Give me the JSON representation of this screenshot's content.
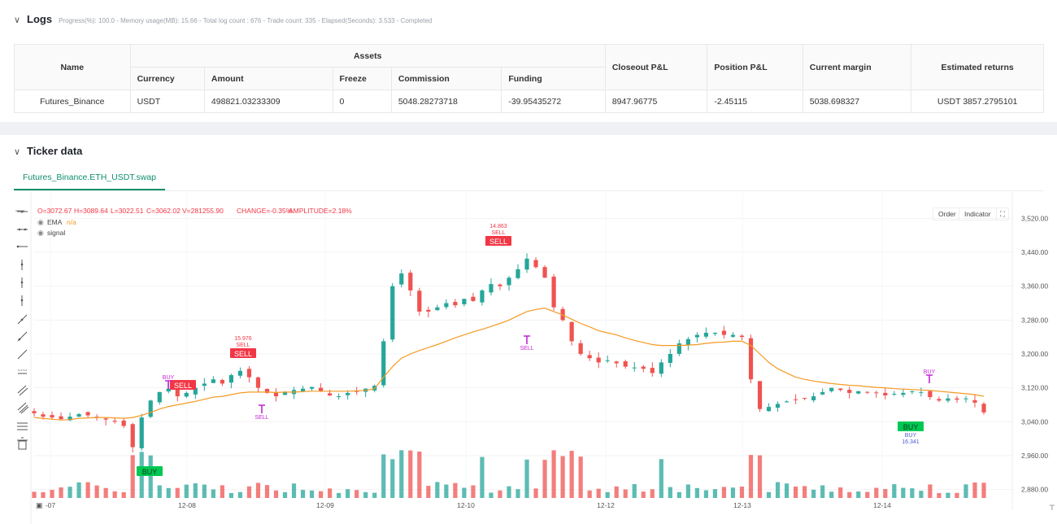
{
  "logs": {
    "title": "Logs",
    "status": "Progress(%): 100.0  -  Memory usage(MB): 15.66  -  Total log count : 676  -  Trade count:  335  -  Elapsed(Seconds): 3.533  -  Completed",
    "table": {
      "headers": {
        "name": "Name",
        "assets": "Assets",
        "currency": "Currency",
        "amount": "Amount",
        "freeze": "Freeze",
        "commission": "Commission",
        "funding": "Funding",
        "closeout": "Closeout P&L",
        "position": "Position P&L",
        "margin": "Current margin",
        "returns": "Estimated returns"
      },
      "row": {
        "name": "Futures_Binance",
        "currency": "USDT",
        "amount": "498821.03233309",
        "freeze": "0",
        "commission": "5048.28273718",
        "funding": "-39.95435272",
        "closeout": "8947.96775",
        "position": "-2.45115",
        "margin": "5038.698327",
        "returns": "USDT 3857.2795101"
      }
    }
  },
  "ticker": {
    "title": "Ticker data",
    "tab": "Futures_Binance.ETH_USDT.swap",
    "buttons": {
      "order": "Order",
      "indicator": "Indicator"
    },
    "ohlc": {
      "o": "O=3072.67",
      "h": "H=3089.64",
      "l": "L=3022.51",
      "c": "C=3062.02",
      "v": "V=281255.90",
      "change": "CHANGE=-0.35%",
      "amp": "AMPLITUDE=2.18%"
    },
    "legend": {
      "ema": "EMA",
      "ema_val": "n/a",
      "signal": "signal"
    }
  },
  "colors": {
    "up": "#26a69a",
    "down": "#ef5350",
    "ema": "#f59a23",
    "buy": "#00c853",
    "sell": "#f23645",
    "signal": "#c026d3",
    "accent": "#0e8f6d"
  },
  "chart_data": {
    "type": "candlestick",
    "symbol": "Futures_Binance.ETH_USDT.swap",
    "x_ticks": [
      "-07",
      "12-08",
      "12-09",
      "12-10",
      "12-12",
      "12-13",
      "12-14"
    ],
    "y_ticks": [
      3520,
      3440,
      3360,
      3280,
      3200,
      3120,
      3040,
      2960,
      2880
    ],
    "ylim": [
      2860,
      3540
    ],
    "close_path": [
      3060,
      3052,
      3050,
      3046,
      3052,
      3058,
      3055,
      3050,
      3045,
      3040,
      3030,
      2980,
      3050,
      3090,
      3110,
      3118,
      3100,
      3108,
      3120,
      3130,
      3140,
      3130,
      3150,
      3160,
      3145,
      3120,
      3108,
      3100,
      3110,
      3115,
      3118,
      3122,
      3112,
      3102,
      3100,
      3108,
      3112,
      3118,
      3125,
      3230,
      3360,
      3390,
      3350,
      3300,
      3300,
      3310,
      3320,
      3315,
      3330,
      3325,
      3350,
      3365,
      3360,
      3380,
      3400,
      3425,
      3405,
      3380,
      3310,
      3280,
      3230,
      3200,
      3190,
      3180,
      3185,
      3178,
      3170,
      3168,
      3165,
      3155,
      3180,
      3200,
      3225,
      3235,
      3245,
      3250,
      3250,
      3245,
      3245,
      3240,
      3140,
      3070,
      3075,
      3082,
      3088,
      3092,
      3095,
      3100,
      3110,
      3120,
      3115,
      3108,
      3112,
      3110,
      3108,
      3102,
      3106,
      3108,
      3112,
      3110,
      3098,
      3090,
      3095,
      3092,
      3095,
      3085,
      3062
    ],
    "ema_path": [
      3050,
      3048,
      3046,
      3044,
      3045,
      3048,
      3049,
      3050,
      3050,
      3049,
      3048,
      3050,
      3055,
      3062,
      3070,
      3076,
      3080,
      3084,
      3088,
      3093,
      3098,
      3100,
      3104,
      3108,
      3110,
      3110,
      3110,
      3109,
      3110,
      3110,
      3111,
      3112,
      3112,
      3112,
      3112,
      3112,
      3113,
      3114,
      3118,
      3145,
      3170,
      3190,
      3200,
      3208,
      3215,
      3222,
      3230,
      3238,
      3245,
      3252,
      3258,
      3265,
      3272,
      3280,
      3290,
      3300,
      3305,
      3308,
      3300,
      3292,
      3282,
      3272,
      3264,
      3255,
      3250,
      3245,
      3238,
      3232,
      3227,
      3222,
      3220,
      3220,
      3220,
      3221,
      3222,
      3225,
      3227,
      3228,
      3230,
      3230,
      3220,
      3200,
      3180,
      3165,
      3155,
      3145,
      3140,
      3136,
      3133,
      3130,
      3128,
      3126,
      3125,
      3123,
      3121,
      3120,
      3118,
      3117,
      3116,
      3115,
      3114,
      3112,
      3110,
      3108,
      3106,
      3104,
      3100
    ],
    "markers": [
      {
        "kind": "SELL",
        "label": "SELL",
        "sub": "15.976",
        "price": 3200
      },
      {
        "kind": "SELL",
        "label": "SELL",
        "sub": "14.863",
        "price": 3440
      },
      {
        "kind": "BUY",
        "label": "BUY",
        "sub": "16.341",
        "price": 3040
      },
      {
        "kind": "BUY",
        "label": "BUY",
        "sub": "",
        "price": 2880
      },
      {
        "kind": "SELL",
        "label": "SELL",
        "sub": "",
        "price": 3110
      }
    ]
  }
}
